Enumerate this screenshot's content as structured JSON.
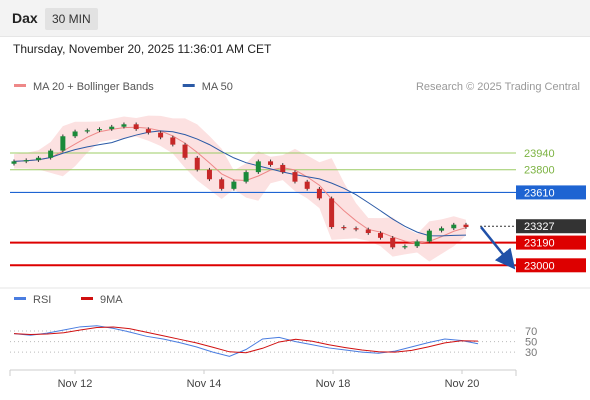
{
  "header": {
    "symbol": "Dax",
    "timeframe": "30 MIN"
  },
  "timestamp": "Thursday, November 20, 2025 11:36:01 AM CET",
  "copyright": "Research © 2025 Trading Central",
  "chart_data": [
    {
      "type": "candlestick",
      "legend": [
        {
          "label": "MA 20 + Bollinger Bands",
          "color": "#ee8888"
        },
        {
          "label": "MA 50",
          "color": "#2b5aa6"
        }
      ],
      "x_ticks": [
        "Nov 12",
        "Nov 14",
        "Nov 18",
        "Nov 20"
      ],
      "ylim": [
        22810,
        24350
      ],
      "levels": [
        {
          "value": 23940,
          "label": "23940",
          "style": "resistance-light",
          "color": "#9ccc65"
        },
        {
          "value": 23800,
          "label": "23800",
          "style": "resistance-light",
          "color": "#9ccc65"
        },
        {
          "value": 23610,
          "label": "23610",
          "style": "pivot",
          "color": "#1e64d2"
        },
        {
          "value": 23327,
          "label": "23327",
          "style": "last-price",
          "color": "#333333"
        },
        {
          "value": 23190,
          "label": "23190",
          "style": "support",
          "color": "#dd0000"
        },
        {
          "value": 23000,
          "label": "23000",
          "style": "support",
          "color": "#dd0000"
        }
      ],
      "close_series": [
        23870,
        23880,
        23900,
        23960,
        24080,
        24120,
        24130,
        24140,
        24160,
        24180,
        24140,
        24110,
        24070,
        24010,
        23900,
        23800,
        23720,
        23640,
        23700,
        23780,
        23870,
        23840,
        23780,
        23700,
        23640,
        23560,
        23320,
        23310,
        23300,
        23270,
        23230,
        23150,
        23160,
        23200,
        23290,
        23310,
        23340,
        23320
      ],
      "forecast_arrow": {
        "from": 23320,
        "to": 23030
      }
    },
    {
      "type": "line",
      "legend": [
        {
          "label": "RSI",
          "color": "#4a7de0"
        },
        {
          "label": "9MA",
          "color": "#d01010"
        }
      ],
      "ylim": [
        0,
        100
      ],
      "y_ticks": [
        70,
        50,
        30
      ],
      "rsi_series": [
        65,
        62,
        66,
        72,
        78,
        80,
        75,
        68,
        60,
        55,
        48,
        40,
        30,
        22,
        35,
        55,
        58,
        50,
        44,
        38,
        34,
        30,
        28,
        32,
        40,
        48,
        55,
        52,
        46
      ]
    }
  ]
}
